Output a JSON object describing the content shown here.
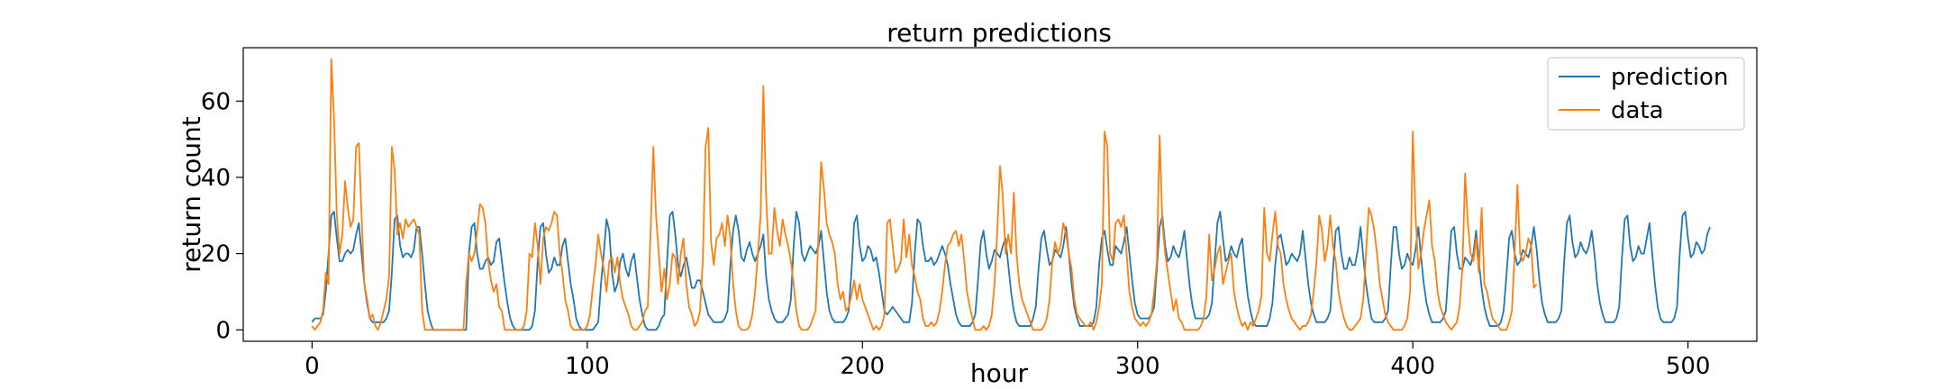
{
  "chart_data": {
    "type": "line",
    "title": "return predictions",
    "xlabel": "hour",
    "ylabel": "return count",
    "xlim": [
      -25,
      525
    ],
    "ylim": [
      -3,
      74
    ],
    "xticks": [
      0,
      100,
      200,
      300,
      400,
      500
    ],
    "yticks": [
      0,
      20,
      40,
      60
    ],
    "grid": false,
    "legend_position": "top-right",
    "series": [
      {
        "name": "prediction",
        "color": "#1f77b4",
        "values": [
          2,
          3,
          3,
          3,
          4,
          10,
          20,
          30,
          31,
          24,
          18,
          18,
          20,
          21,
          20,
          21,
          25,
          28,
          20,
          12,
          7,
          3,
          2,
          2,
          2,
          2,
          2,
          3,
          5,
          15,
          29,
          30,
          22,
          19,
          20,
          20,
          19,
          21,
          27,
          27,
          20,
          12,
          5,
          2,
          0,
          0,
          0,
          0,
          0,
          0,
          0,
          0,
          0,
          0,
          0,
          0,
          0,
          20,
          27,
          28,
          20,
          16,
          16,
          18,
          19,
          17,
          18,
          23,
          24,
          18,
          12,
          7,
          3,
          1,
          0,
          0,
          0,
          0,
          0,
          0,
          1,
          5,
          18,
          27,
          28,
          20,
          15,
          16,
          19,
          17,
          17,
          22,
          24,
          18,
          12,
          8,
          3,
          1,
          0,
          0,
          0,
          0,
          0,
          1,
          2,
          12,
          20,
          29,
          26,
          15,
          10,
          12,
          18,
          20,
          16,
          14,
          18,
          20,
          14,
          8,
          4,
          1,
          0,
          0,
          0,
          0,
          1,
          3,
          4,
          18,
          30,
          31,
          25,
          17,
          14,
          17,
          19,
          15,
          11,
          11,
          13,
          13,
          10,
          7,
          4,
          3,
          2,
          2,
          2,
          2,
          3,
          5,
          17,
          26,
          30,
          26,
          19,
          18,
          21,
          23,
          20,
          18,
          20,
          22,
          25,
          14,
          8,
          5,
          3,
          2,
          2,
          2,
          3,
          4,
          8,
          22,
          31,
          28,
          20,
          18,
          20,
          22,
          21,
          20,
          22,
          26,
          18,
          10,
          5,
          3,
          2,
          2,
          2,
          2,
          3,
          5,
          15,
          28,
          30,
          22,
          18,
          19,
          22,
          21,
          18,
          19,
          15,
          10,
          5,
          4,
          5,
          6,
          5,
          4,
          3,
          2,
          2,
          2,
          7,
          20,
          29,
          28,
          22,
          18,
          18,
          19,
          17,
          18,
          20,
          22,
          20,
          17,
          12,
          8,
          4,
          2,
          1,
          1,
          1,
          1,
          2,
          4,
          13,
          23,
          26,
          20,
          16,
          18,
          21,
          20,
          19,
          22,
          24,
          17,
          10,
          5,
          2,
          1,
          1,
          1,
          1,
          1,
          3,
          6,
          16,
          24,
          26,
          21,
          17,
          18,
          21,
          20,
          19,
          22,
          27,
          20,
          12,
          6,
          3,
          1,
          1,
          1,
          1,
          1,
          2,
          6,
          17,
          24,
          26,
          21,
          17,
          17,
          22,
          21,
          20,
          23,
          27,
          20,
          13,
          7,
          4,
          3,
          3,
          3,
          3,
          4,
          6,
          16,
          27,
          30,
          22,
          18,
          19,
          22,
          20,
          19,
          22,
          26,
          18,
          11,
          6,
          3,
          3,
          3,
          3,
          3,
          4,
          7,
          18,
          28,
          31,
          24,
          18,
          19,
          22,
          20,
          19,
          22,
          24,
          16,
          9,
          5,
          2,
          1,
          1,
          1,
          1,
          1,
          3,
          7,
          17,
          24,
          25,
          21,
          17,
          18,
          20,
          19,
          18,
          20,
          26,
          19,
          12,
          7,
          4,
          2,
          2,
          2,
          2,
          3,
          5,
          16,
          26,
          27,
          20,
          16,
          16,
          19,
          17,
          17,
          21,
          27,
          19,
          12,
          7,
          3,
          2,
          2,
          2,
          2,
          3,
          5,
          17,
          27,
          27,
          20,
          16,
          17,
          20,
          18,
          17,
          21,
          27,
          19,
          12,
          7,
          4,
          2,
          2,
          2,
          2,
          3,
          5,
          16,
          26,
          27,
          20,
          16,
          16,
          19,
          18,
          17,
          20,
          26,
          18,
          11,
          6,
          3,
          1,
          1,
          1,
          1,
          2,
          5,
          14,
          24,
          26,
          20,
          17,
          18,
          21,
          20,
          19,
          22,
          27,
          21,
          13,
          7,
          4,
          2,
          2,
          2,
          2,
          3,
          5,
          18,
          28,
          30,
          23,
          19,
          20,
          23,
          21,
          20,
          22,
          26,
          20,
          12,
          7,
          4,
          2,
          2,
          2,
          2,
          3,
          6,
          19,
          29,
          30,
          22,
          18,
          19,
          22,
          20,
          20,
          24,
          28,
          20,
          12,
          6,
          3,
          2,
          2,
          2,
          2,
          3,
          6,
          20,
          30,
          31,
          24,
          19,
          20,
          23,
          22,
          20,
          21,
          25,
          27
        ]
      },
      {
        "name": "data",
        "color": "#ff7f0e",
        "values": [
          1,
          0,
          1,
          2,
          5,
          15,
          12,
          71,
          55,
          30,
          20,
          25,
          39,
          32,
          27,
          29,
          48,
          49,
          30,
          12,
          8,
          3,
          4,
          1,
          0,
          2,
          5,
          8,
          14,
          48,
          42,
          25,
          28,
          24,
          29,
          27,
          28,
          29,
          27,
          25,
          5,
          0,
          0,
          0,
          0,
          0,
          0,
          0,
          0,
          0,
          0,
          0,
          0,
          0,
          0,
          0,
          12,
          20,
          18,
          20,
          26,
          33,
          32,
          28,
          18,
          13,
          10,
          12,
          6,
          5,
          0,
          0,
          0,
          0,
          0,
          0,
          0,
          1,
          5,
          20,
          19,
          28,
          22,
          12,
          24,
          27,
          26,
          28,
          31,
          30,
          20,
          15,
          8,
          5,
          1,
          0,
          0,
          0,
          0,
          0,
          1,
          4,
          11,
          17,
          25,
          20,
          16,
          10,
          18,
          19,
          15,
          19,
          12,
          8,
          6,
          4,
          1,
          0,
          0,
          1,
          2,
          5,
          6,
          25,
          48,
          30,
          20,
          10,
          16,
          8,
          12,
          20,
          19,
          12,
          20,
          24,
          12,
          6,
          4,
          1,
          2,
          5,
          18,
          48,
          53,
          23,
          17,
          24,
          25,
          28,
          22,
          30,
          24,
          12,
          5,
          1,
          0,
          0,
          0,
          1,
          4,
          10,
          20,
          30,
          64,
          35,
          20,
          20,
          32,
          26,
          22,
          29,
          25,
          22,
          18,
          12,
          5,
          1,
          0,
          0,
          0,
          1,
          3,
          5,
          25,
          44,
          37,
          28,
          25,
          23,
          20,
          12,
          8,
          10,
          5,
          6,
          9,
          13,
          8,
          12,
          8,
          6,
          4,
          2,
          0,
          1,
          0,
          1,
          4,
          28,
          29,
          22,
          15,
          16,
          18,
          29,
          19,
          25,
          17,
          14,
          10,
          8,
          3,
          1,
          1,
          2,
          1,
          2,
          5,
          10,
          17,
          22,
          23,
          25,
          26,
          22,
          25,
          18,
          10,
          6,
          3,
          0,
          0,
          0,
          1,
          0,
          1,
          4,
          12,
          26,
          43,
          35,
          20,
          25,
          20,
          36,
          20,
          12,
          8,
          6,
          4,
          2,
          0,
          0,
          0,
          0,
          1,
          3,
          8,
          18,
          23,
          20,
          22,
          28,
          25,
          20,
          16,
          8,
          4,
          3,
          2,
          1,
          1,
          2,
          0,
          2,
          6,
          12,
          52,
          48,
          20,
          18,
          28,
          29,
          27,
          30,
          20,
          10,
          6,
          3,
          2,
          1,
          2,
          1,
          2,
          4,
          10,
          18,
          51,
          28,
          20,
          15,
          10,
          5,
          8,
          3,
          2,
          0,
          0,
          0,
          0,
          0,
          0,
          1,
          3,
          9,
          25,
          13,
          16,
          20,
          22,
          12,
          15,
          18,
          20,
          10,
          6,
          3,
          1,
          2,
          0,
          2,
          1,
          3,
          5,
          9,
          32,
          20,
          18,
          25,
          31,
          22,
          20,
          12,
          8,
          5,
          3,
          2,
          1,
          0,
          1,
          1,
          2,
          4,
          10,
          18,
          30,
          26,
          18,
          22,
          30,
          22,
          18,
          10,
          6,
          3,
          1,
          0,
          0,
          1,
          2,
          3,
          8,
          20,
          32,
          30,
          26,
          20,
          12,
          8,
          4,
          2,
          1,
          0,
          0,
          0,
          0,
          1,
          3,
          10,
          52,
          30,
          16,
          20,
          26,
          30,
          34,
          22,
          18,
          10,
          6,
          4,
          2,
          1,
          0,
          1,
          2,
          6,
          16,
          41,
          28,
          20,
          18,
          24,
          15,
          32,
          12,
          10,
          6,
          3,
          2,
          1,
          0,
          0,
          0,
          2,
          5,
          20,
          38,
          20,
          18,
          20,
          24,
          22,
          11,
          12
        ]
      }
    ]
  }
}
